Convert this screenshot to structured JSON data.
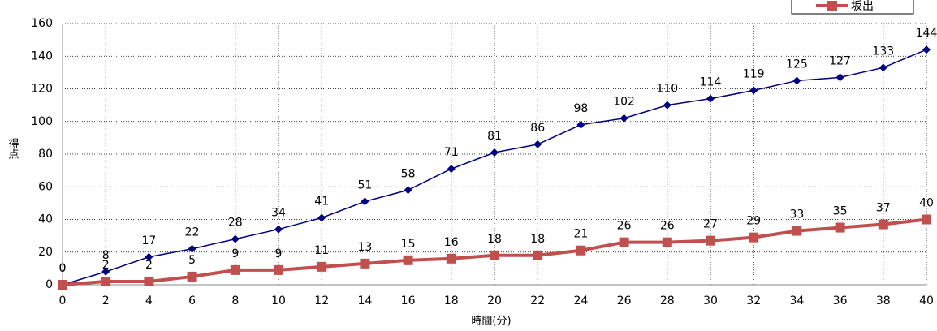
{
  "chart_data": {
    "type": "line",
    "y_label": "得点",
    "x_label": "時間(分)",
    "x": [
      0,
      2,
      4,
      6,
      8,
      10,
      12,
      14,
      16,
      18,
      20,
      22,
      24,
      26,
      28,
      30,
      32,
      34,
      36,
      38,
      40
    ],
    "series": [
      {
        "color": "#000080",
        "marker": "diamond",
        "values": [
          0,
          8,
          17,
          22,
          28,
          34,
          41,
          51,
          58,
          71,
          81,
          86,
          98,
          102,
          110,
          114,
          119,
          125,
          127,
          133,
          144
        ]
      },
      {
        "name": "坂出",
        "color": "#c0504d",
        "marker": "square",
        "values": [
          0,
          2,
          2,
          5,
          9,
          9,
          11,
          13,
          15,
          16,
          18,
          18,
          21,
          26,
          26,
          27,
          29,
          33,
          35,
          37,
          40
        ]
      }
    ],
    "xlim": [
      0,
      40
    ],
    "xticks": [
      0,
      2,
      4,
      6,
      8,
      10,
      12,
      14,
      16,
      18,
      20,
      22,
      24,
      26,
      28,
      30,
      32,
      34,
      36,
      38,
      40
    ],
    "ylim": [
      0,
      160
    ],
    "yticks": [
      0,
      20,
      40,
      60,
      80,
      100,
      120,
      140,
      160
    ],
    "grid": true,
    "legend": "top-right"
  }
}
